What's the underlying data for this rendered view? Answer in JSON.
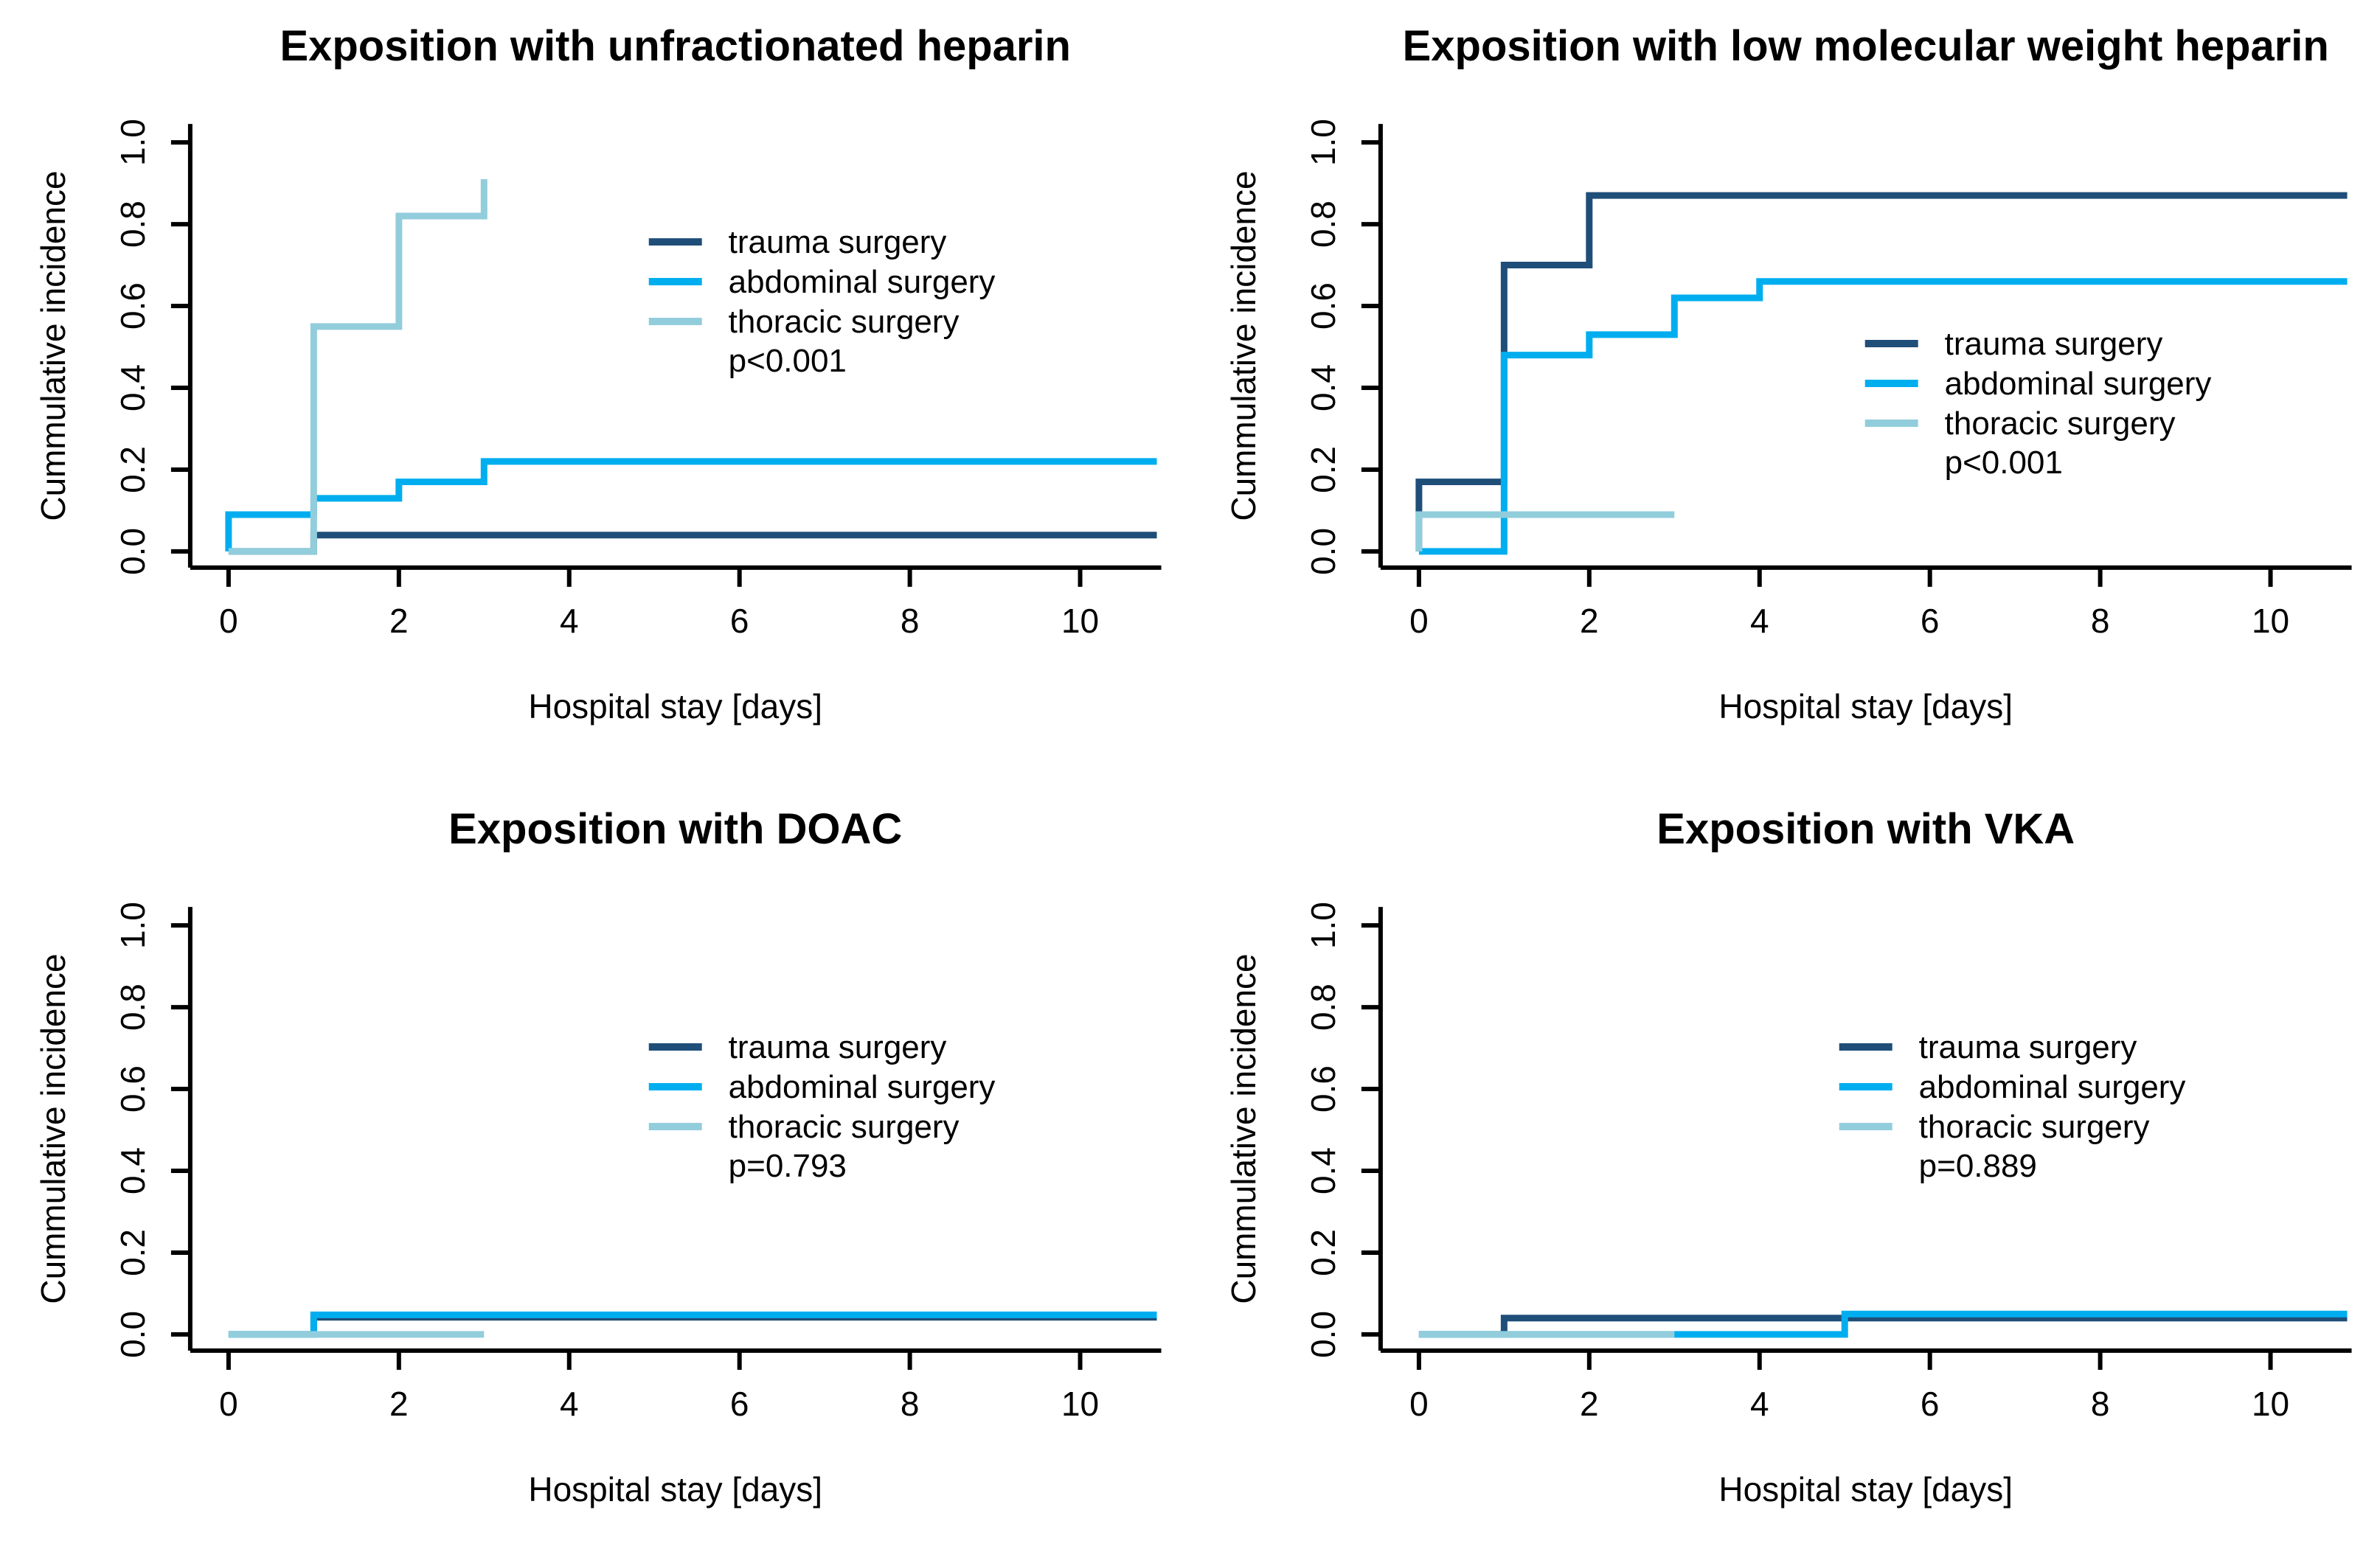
{
  "figure": {
    "background": "#ffffff",
    "text_color": "#000000",
    "axis_color": "#000000"
  },
  "chart_data": {
    "type": "line",
    "subtype": "kaplan-meier-step-curves",
    "grid": "off",
    "xlabel": "Hospital stay [days]",
    "ylabel": "Cummulative incidence",
    "xlim": [
      0,
      10.9
    ],
    "ylim": [
      0,
      1.0
    ],
    "x_ticks": [
      0,
      2,
      4,
      6,
      8,
      10
    ],
    "x_tick_labels": [
      "0",
      "2",
      "4",
      "6",
      "8",
      "10"
    ],
    "y_ticks": [
      0.0,
      0.2,
      0.4,
      0.6,
      0.8,
      1.0
    ],
    "y_tick_labels": [
      "0.0",
      "0.2",
      "0.4",
      "0.6",
      "0.8",
      "1.0"
    ],
    "legend": {
      "position": "inside-right",
      "entries": [
        {
          "label": "trauma surgery",
          "color": "#1F4E79"
        },
        {
          "label": "abdominal surgery",
          "color": "#00AEEF"
        },
        {
          "label": "thoracic surgery",
          "color": "#92CDDC"
        }
      ]
    },
    "panels": [
      {
        "title": "Exposition with unfractionated heparin",
        "p_label": "p<0.001",
        "series": [
          {
            "name": "trauma surgery",
            "color": "#1F4E79",
            "points": [
              [
                0,
                0
              ],
              [
                1,
                0
              ],
              [
                1,
                0.04
              ],
              [
                10.9,
                0.04
              ]
            ]
          },
          {
            "name": "abdominal surgery",
            "color": "#00AEEF",
            "points": [
              [
                0,
                0
              ],
              [
                0,
                0.09
              ],
              [
                1,
                0.09
              ],
              [
                1,
                0.13
              ],
              [
                2,
                0.13
              ],
              [
                2,
                0.17
              ],
              [
                3,
                0.17
              ],
              [
                3,
                0.22
              ],
              [
                10.9,
                0.22
              ]
            ]
          },
          {
            "name": "thoracic surgery",
            "color": "#92CDDC",
            "points": [
              [
                0,
                0
              ],
              [
                1,
                0
              ],
              [
                1,
                0.55
              ],
              [
                2,
                0.55
              ],
              [
                2,
                0.82
              ],
              [
                3,
                0.82
              ],
              [
                3,
                0.91
              ]
            ]
          }
        ]
      },
      {
        "title": "Exposition with low molecular weight heparin",
        "p_label": "p<0.001",
        "series": [
          {
            "name": "trauma surgery",
            "color": "#1F4E79",
            "points": [
              [
                0,
                0
              ],
              [
                0,
                0.17
              ],
              [
                1,
                0.17
              ],
              [
                1,
                0.7
              ],
              [
                2,
                0.7
              ],
              [
                2,
                0.87
              ],
              [
                10.9,
                0.87
              ]
            ]
          },
          {
            "name": "abdominal surgery",
            "color": "#00AEEF",
            "points": [
              [
                0,
                0
              ],
              [
                1,
                0
              ],
              [
                1,
                0.48
              ],
              [
                2,
                0.48
              ],
              [
                2,
                0.53
              ],
              [
                3,
                0.53
              ],
              [
                3,
                0.62
              ],
              [
                4,
                0.62
              ],
              [
                4,
                0.66
              ],
              [
                10.9,
                0.66
              ]
            ]
          },
          {
            "name": "thoracic surgery",
            "color": "#92CDDC",
            "points": [
              [
                0,
                0
              ],
              [
                0,
                0.09
              ],
              [
                3,
                0.09
              ]
            ]
          }
        ]
      },
      {
        "title": "Exposition with DOAC",
        "p_label": "p=0.793",
        "series": [
          {
            "name": "trauma surgery",
            "color": "#1F4E79",
            "points": [
              [
                0,
                0
              ],
              [
                1,
                0
              ],
              [
                1,
                0.042
              ],
              [
                10.9,
                0.042
              ]
            ]
          },
          {
            "name": "abdominal surgery",
            "color": "#00AEEF",
            "points": [
              [
                0,
                0
              ],
              [
                1,
                0
              ],
              [
                1,
                0.048
              ],
              [
                10.9,
                0.048
              ]
            ]
          },
          {
            "name": "thoracic surgery",
            "color": "#92CDDC",
            "points": [
              [
                0,
                0
              ],
              [
                3,
                0
              ]
            ]
          }
        ]
      },
      {
        "title": "Exposition with VKA",
        "p_label": "p=0.889",
        "series": [
          {
            "name": "trauma surgery",
            "color": "#1F4E79",
            "points": [
              [
                0,
                0
              ],
              [
                1,
                0
              ],
              [
                1,
                0.04
              ],
              [
                10.9,
                0.04
              ]
            ]
          },
          {
            "name": "abdominal surgery",
            "color": "#00AEEF",
            "points": [
              [
                0,
                0
              ],
              [
                5,
                0
              ],
              [
                5,
                0.05
              ],
              [
                10.9,
                0.05
              ]
            ]
          },
          {
            "name": "thoracic surgery",
            "color": "#92CDDC",
            "points": [
              [
                0,
                0
              ],
              [
                3,
                0
              ]
            ]
          }
        ]
      }
    ]
  }
}
